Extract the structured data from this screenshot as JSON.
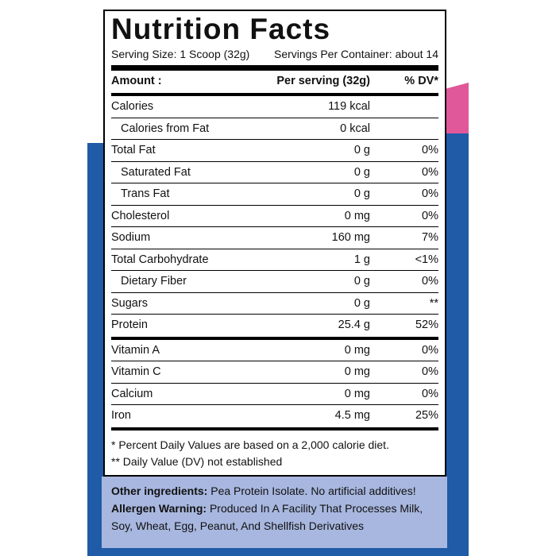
{
  "header": {
    "title": "Nutrition Facts",
    "serving_size": "Serving Size: 1 Scoop (32g)",
    "servings_per_container": "Servings Per Container: about 14"
  },
  "table": {
    "columns": [
      "Amount :",
      "Per serving (32g)",
      "% DV*"
    ],
    "rows": [
      [
        "Calories",
        "119 kcal",
        ""
      ],
      [
        "Calories from Fat",
        "0 kcal",
        ""
      ],
      [
        "Total Fat",
        "0 g",
        "0%"
      ],
      [
        "Saturated Fat",
        "0 g",
        "0%"
      ],
      [
        "Trans Fat",
        "0 g",
        "0%"
      ],
      [
        "Cholesterol",
        "0 mg",
        "0%"
      ],
      [
        "Sodium",
        "160 mg",
        "7%"
      ],
      [
        "Total Carbohydrate",
        "1 g",
        "<1%"
      ],
      [
        "Dietary Fiber",
        "0 g",
        "0%"
      ],
      [
        "Sugars",
        "0 g",
        "**"
      ],
      [
        "Protein",
        "25.4 g",
        "52%"
      ],
      [
        "Vitamin A",
        "0 mg",
        "0%"
      ],
      [
        "Vitamin C",
        "0 mg",
        "0%"
      ],
      [
        "Calcium",
        "0 mg",
        "0%"
      ],
      [
        "Iron",
        "4.5 mg",
        "25%"
      ]
    ]
  },
  "footnotes": [
    "* Percent Daily Values are based on a 2,000 calorie diet.",
    "** Daily Value (DV) not established"
  ],
  "ingredients": {
    "label": "Other ingredients:",
    "text": "Pea Protein Isolate. No artificial additives!"
  },
  "allergen": {
    "label": "Allergen Warning:",
    "text": "Produced In A Facility That Processes Milk, Soy, Wheat, Egg, Peanut, And Shellfish Derivatives"
  }
}
